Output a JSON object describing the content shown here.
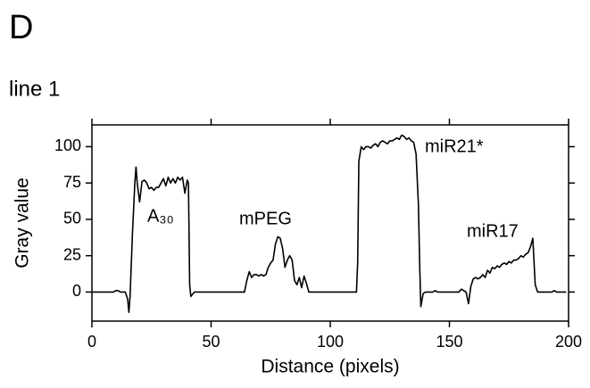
{
  "panel_label": "D",
  "chart_data": {
    "type": "line",
    "title": "line 1",
    "xlabel": "Distance (pixels)",
    "ylabel": "Gray value",
    "xlim": [
      0,
      200
    ],
    "xticks": [
      0,
      50,
      100,
      150,
      200
    ],
    "ylim": [
      -20,
      115
    ],
    "yticks": [
      0,
      25,
      50,
      75,
      100
    ],
    "color": "#000000",
    "annotations": [
      "A₃₀",
      "mPEG",
      "miR21*",
      "miR17"
    ],
    "x": [
      0,
      9,
      10,
      11,
      12,
      14,
      15,
      15.5,
      16,
      17,
      18,
      18.5,
      19,
      20,
      21,
      22,
      23,
      24,
      25,
      26,
      27,
      28,
      29,
      30,
      31,
      32,
      33,
      34,
      35,
      36,
      37,
      38,
      39,
      40,
      40.5,
      41,
      41.5,
      42,
      43,
      64,
      65,
      66,
      67,
      68,
      69,
      70,
      71,
      72,
      73,
      74,
      75,
      76,
      77,
      78,
      79,
      80,
      81,
      82,
      83,
      84,
      85,
      86,
      87,
      88,
      89,
      90,
      91,
      111,
      111.5,
      112,
      113,
      114,
      115,
      116,
      117,
      118,
      119,
      120,
      121,
      122,
      123,
      124,
      125,
      126,
      127,
      128,
      129,
      130,
      131,
      132,
      133,
      134,
      135,
      136,
      137,
      137.5,
      138,
      139,
      140,
      143,
      144,
      145,
      154,
      155,
      157,
      158,
      159,
      160,
      161,
      162,
      163,
      164,
      165,
      166,
      167,
      168,
      169,
      170,
      171,
      172,
      173,
      174,
      175,
      176,
      177,
      178,
      179,
      180,
      181,
      182,
      183,
      184,
      185,
      186,
      187,
      193,
      194,
      195,
      199
    ],
    "values": [
      0,
      0,
      1,
      1,
      0,
      0,
      -5,
      -14,
      -3,
      40,
      75,
      86,
      75,
      62,
      76,
      77,
      75,
      71,
      72,
      70,
      72,
      72,
      75,
      78,
      73,
      79,
      75,
      78,
      75,
      79,
      77,
      79,
      68,
      77,
      75,
      5,
      -3,
      -2,
      0,
      0,
      8,
      14,
      10,
      12,
      12,
      11,
      12,
      11,
      12,
      17,
      20,
      22,
      33,
      38,
      37,
      30,
      17,
      22,
      25,
      22,
      8,
      5,
      10,
      3,
      11,
      6,
      0,
      0,
      20,
      90,
      100,
      98,
      100,
      100,
      99,
      101,
      102,
      100,
      103,
      104,
      103,
      102,
      104,
      104,
      105,
      106,
      105,
      108,
      107,
      105,
      106,
      104,
      103,
      95,
      60,
      20,
      -10,
      -1,
      0,
      0,
      1,
      0,
      0,
      2,
      0,
      -8,
      4,
      9,
      10,
      9,
      10,
      12,
      10,
      15,
      13,
      17,
      16,
      18,
      17,
      19,
      20,
      19,
      21,
      20,
      22,
      22,
      23,
      25,
      24,
      26,
      27,
      31,
      37,
      5,
      0,
      0,
      1,
      0,
      0
    ]
  }
}
